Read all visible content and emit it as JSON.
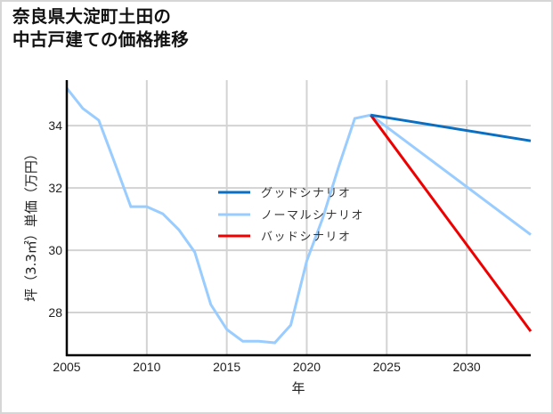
{
  "title": {
    "line1": "奈良県大淀町土田の",
    "line2": "中古戸建ての価格推移"
  },
  "axes": {
    "xlabel": "年",
    "ylabel": "坪（3.3㎡）単価（万円）",
    "xticks": [
      "2005",
      "2010",
      "2015",
      "2020",
      "2025",
      "2030"
    ],
    "yticks": [
      "28",
      "30",
      "32",
      "34"
    ]
  },
  "legend": {
    "good": "グッドシナリオ",
    "normal": "ノーマルシナリオ",
    "bad": "バッドシナリオ"
  },
  "colors": {
    "good": "#0a6fc2",
    "normal": "#99ccff",
    "bad": "#ee0000",
    "grid": "#d3d3d3",
    "axis": "#000000"
  },
  "chart_data": {
    "type": "line",
    "title": "奈良県大淀町土田の中古戸建ての価格推移",
    "xlabel": "年",
    "ylabel": "坪（3.3㎡）単価（万円）",
    "xlim": [
      2005,
      2034
    ],
    "ylim": [
      26.63,
      35.46
    ],
    "grid": true,
    "legend_position": "center",
    "x_ticks": [
      2005,
      2010,
      2015,
      2020,
      2025,
      2030
    ],
    "y_ticks": [
      28,
      30,
      32,
      34
    ],
    "series": [
      {
        "name": "ノーマルシナリオ",
        "role": "historical+projection",
        "x": [
          2005,
          2006,
          2007,
          2008,
          2009,
          2010,
          2011,
          2012,
          2013,
          2014,
          2015,
          2016,
          2017,
          2018,
          2019,
          2020,
          2021,
          2022,
          2023,
          2024,
          2034
        ],
        "values": [
          35.2,
          34.55,
          34.17,
          32.8,
          31.4,
          31.4,
          31.17,
          30.66,
          29.94,
          28.26,
          27.46,
          27.08,
          27.08,
          27.03,
          27.6,
          29.66,
          31.03,
          32.69,
          34.23,
          34.34,
          30.5
        ]
      },
      {
        "name": "グッドシナリオ",
        "role": "projection",
        "x": [
          2024,
          2034
        ],
        "values": [
          34.34,
          33.51
        ]
      },
      {
        "name": "バッドシナリオ",
        "role": "projection",
        "x": [
          2024,
          2034
        ],
        "values": [
          34.34,
          27.4
        ]
      }
    ]
  }
}
